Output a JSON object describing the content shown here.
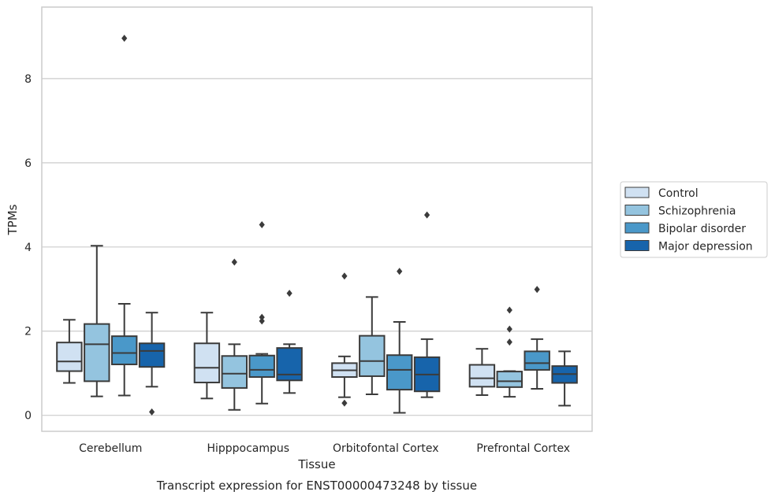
{
  "caption": "Transcript expression for ENST00000473248 by tissue",
  "colors": {
    "Control": "#d0e1f2",
    "Schizophrenia": "#94c4df",
    "Bipolar disorder": "#4a98c9",
    "Major depression": "#1764ab",
    "line": "#3b3b3b",
    "grid": "#cccccc"
  },
  "chart_data": {
    "type": "box",
    "xlabel": "Tissue",
    "ylabel": "TPMs",
    "ylim": [
      -0.38,
      9.7
    ],
    "yticks": [
      0,
      2,
      4,
      6,
      8
    ],
    "categories": [
      "Cerebellum",
      "Hipppocampus",
      "Orbitofontal Cortex",
      "Prefrontal Cortex"
    ],
    "grid": "horizontal",
    "legend": {
      "placement": "right",
      "entries": [
        "Control",
        "Schizophrenia",
        "Bipolar disorder",
        "Major depression"
      ]
    },
    "series": [
      {
        "name": "Control",
        "boxes": [
          {
            "whisker_low": 0.77,
            "q1": 1.05,
            "median": 1.28,
            "q3": 1.73,
            "whisker_high": 2.27,
            "outliers": []
          },
          {
            "whisker_low": 0.4,
            "q1": 0.78,
            "median": 1.13,
            "q3": 1.71,
            "whisker_high": 2.44,
            "outliers": []
          },
          {
            "whisker_low": 0.43,
            "q1": 0.91,
            "median": 1.07,
            "q3": 1.24,
            "whisker_high": 1.4,
            "outliers": [
              3.31,
              0.29
            ]
          },
          {
            "whisker_low": 0.48,
            "q1": 0.68,
            "median": 0.88,
            "q3": 1.2,
            "whisker_high": 1.58,
            "outliers": []
          }
        ]
      },
      {
        "name": "Schizophrenia",
        "boxes": [
          {
            "whisker_low": 0.45,
            "q1": 0.81,
            "median": 1.69,
            "q3": 2.17,
            "whisker_high": 4.03,
            "outliers": []
          },
          {
            "whisker_low": 0.13,
            "q1": 0.65,
            "median": 0.99,
            "q3": 1.41,
            "whisker_high": 1.69,
            "outliers": [
              3.64
            ]
          },
          {
            "whisker_low": 0.5,
            "q1": 0.93,
            "median": 1.29,
            "q3": 1.89,
            "whisker_high": 2.81,
            "outliers": []
          },
          {
            "whisker_low": 0.44,
            "q1": 0.67,
            "median": 0.81,
            "q3": 1.04,
            "whisker_high": 1.05,
            "outliers": [
              2.5,
              2.05,
              1.74
            ]
          }
        ]
      },
      {
        "name": "Bipolar disorder",
        "boxes": [
          {
            "whisker_low": 0.47,
            "q1": 1.21,
            "median": 1.48,
            "q3": 1.88,
            "whisker_high": 2.65,
            "outliers": [
              8.96
            ]
          },
          {
            "whisker_low": 0.28,
            "q1": 0.91,
            "median": 1.08,
            "q3": 1.42,
            "whisker_high": 1.46,
            "outliers": [
              4.53,
              2.33,
              2.24
            ]
          },
          {
            "whisker_low": 0.06,
            "q1": 0.61,
            "median": 1.08,
            "q3": 1.43,
            "whisker_high": 2.22,
            "outliers": [
              3.42
            ]
          },
          {
            "whisker_low": 0.63,
            "q1": 1.08,
            "median": 1.24,
            "q3": 1.52,
            "whisker_high": 1.81,
            "outliers": [
              2.99
            ]
          }
        ]
      },
      {
        "name": "Major depression",
        "boxes": [
          {
            "whisker_low": 0.68,
            "q1": 1.15,
            "median": 1.53,
            "q3": 1.71,
            "whisker_high": 2.44,
            "outliers": [
              0.08
            ]
          },
          {
            "whisker_low": 0.53,
            "q1": 0.83,
            "median": 0.97,
            "q3": 1.6,
            "whisker_high": 1.69,
            "outliers": [
              2.9
            ]
          },
          {
            "whisker_low": 0.43,
            "q1": 0.57,
            "median": 0.97,
            "q3": 1.38,
            "whisker_high": 1.81,
            "outliers": [
              4.76
            ]
          },
          {
            "whisker_low": 0.23,
            "q1": 0.77,
            "median": 0.98,
            "q3": 1.17,
            "whisker_high": 1.52,
            "outliers": []
          }
        ]
      }
    ]
  }
}
